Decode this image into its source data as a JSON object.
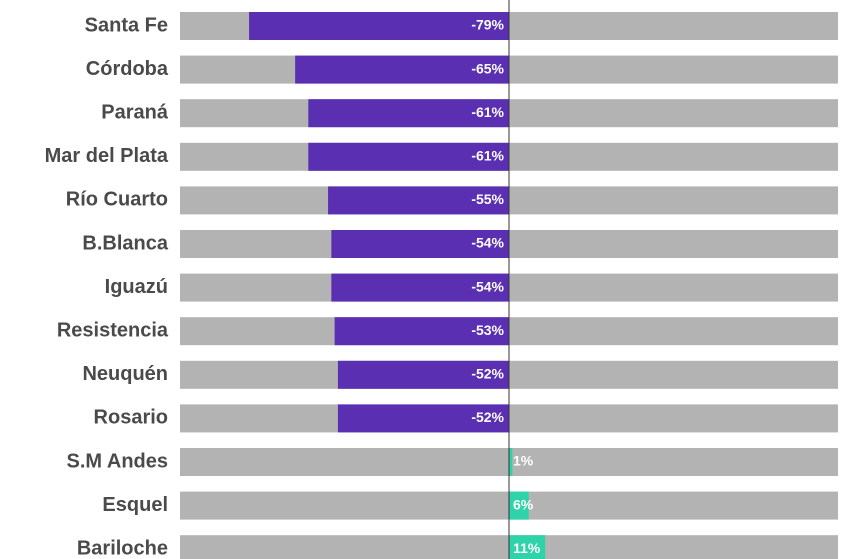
{
  "chart_data": {
    "type": "bar",
    "orientation": "horizontal",
    "categories": [
      "Santa Fe",
      "Córdoba",
      "Paraná",
      "Mar del Plata",
      "Río Cuarto",
      "B.Blanca",
      "Iguazú",
      "Resistencia",
      "Neuquén",
      "Rosario",
      "S.M Andes",
      "Esquel",
      "Bariloche"
    ],
    "values": [
      -79,
      -65,
      -61,
      -61,
      -55,
      -54,
      -54,
      -53,
      -52,
      -52,
      1,
      6,
      11
    ],
    "value_labels": [
      "-79%",
      "-65%",
      "-61%",
      "-61%",
      "-55%",
      "-54%",
      "-54%",
      "-53%",
      "-52%",
      "-52%",
      "1%",
      "6%",
      "11%"
    ],
    "negative_color": "#5a2fb2",
    "positive_color": "#2fd3a9",
    "track_color": "#b3b3b3",
    "xlim": [
      -100,
      100
    ]
  }
}
